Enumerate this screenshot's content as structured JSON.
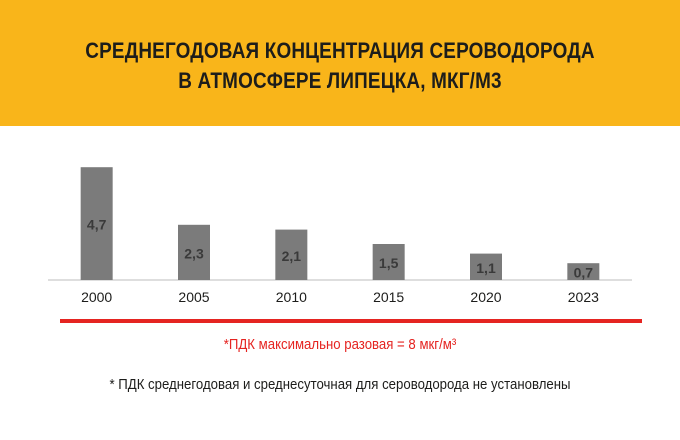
{
  "header": {
    "title_line1": "СРЕДНЕГОДОВАЯ КОНЦЕНТРАЦИЯ СЕРОВОДОРОДА",
    "title_line2": "В АТМОСФЕРЕ ЛИПЕЦКА, МКГ/М3"
  },
  "chart_data": {
    "type": "bar",
    "categories": [
      "2000",
      "2005",
      "2010",
      "2015",
      "2020",
      "2023"
    ],
    "values": [
      4.7,
      2.3,
      2.1,
      1.5,
      1.1,
      0.7
    ],
    "value_labels": [
      "4,7",
      "2,3",
      "2,1",
      "1,5",
      "1,1",
      "0,7"
    ],
    "ylim": [
      0,
      5
    ],
    "grid": false,
    "bar_color": "#7b7b7b",
    "label_color": "#3a3a3a"
  },
  "footer": {
    "pdk_note": "*ПДК максимально разовая = 8 мкг/м³",
    "note": "* ПДК среднегодовая и среднесуточная для сероводорода не установлены"
  },
  "colors": {
    "banner": "#f9b51a",
    "accent_line": "#e52421",
    "pdk_text": "#e52421"
  }
}
